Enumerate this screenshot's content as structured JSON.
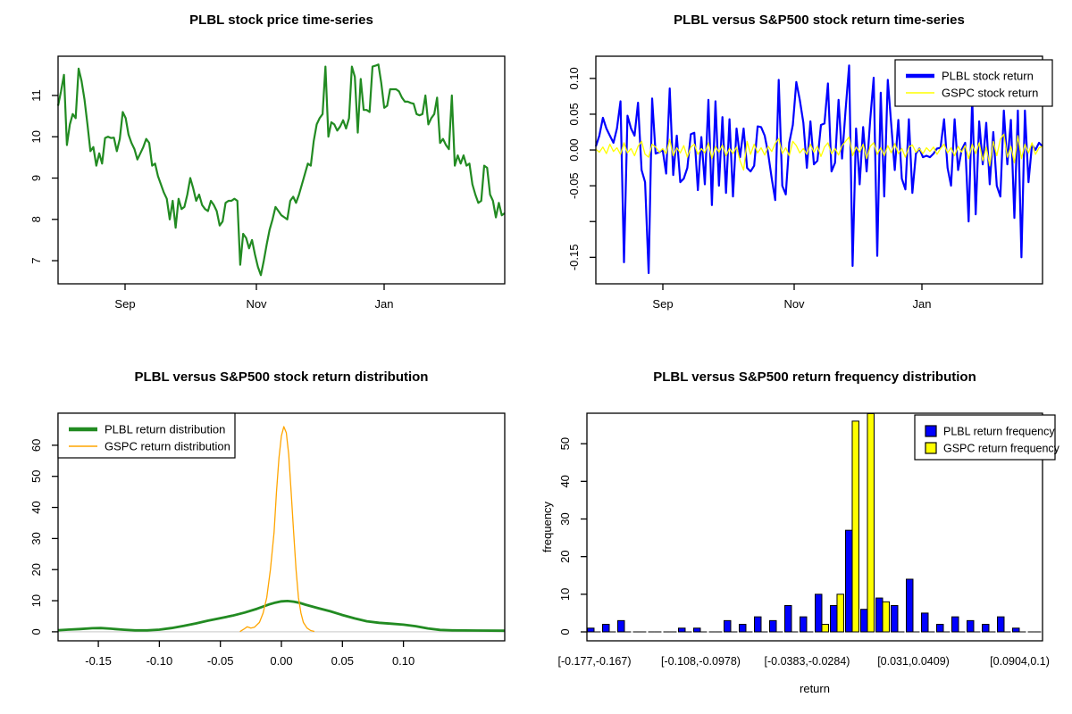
{
  "page": {
    "background": "#ffffff"
  },
  "chart_data": [
    {
      "id": "price",
      "type": "line",
      "title": "PLBL stock price time-series",
      "x_ticks": [
        {
          "f": 0.15,
          "label": "Sep"
        },
        {
          "f": 0.444,
          "label": "Nov"
        },
        {
          "f": 0.73,
          "label": "Jan"
        }
      ],
      "y_ticks": [
        {
          "v": 7,
          "label": "7"
        },
        {
          "v": 8,
          "label": "8"
        },
        {
          "v": 9,
          "label": "9"
        },
        {
          "v": 10,
          "label": "10"
        },
        {
          "v": 11,
          "label": "11"
        }
      ],
      "ylim": [
        6.44,
        11.95
      ],
      "series": [
        {
          "name": "PLBL stock price",
          "color": "#228B22",
          "width": 2.2,
          "values": [
            10.75,
            11.1,
            11.5,
            9.8,
            10.3,
            10.55,
            10.45,
            11.65,
            11.35,
            10.9,
            10.3,
            9.65,
            9.75,
            9.3,
            9.6,
            9.35,
            9.97,
            10.0,
            9.97,
            9.98,
            9.65,
            9.95,
            10.6,
            10.45,
            10.05,
            9.85,
            9.7,
            9.45,
            9.6,
            9.75,
            9.95,
            9.85,
            9.3,
            9.35,
            9.05,
            8.85,
            8.65,
            8.5,
            8.0,
            8.45,
            7.8,
            8.5,
            8.25,
            8.3,
            8.6,
            9.0,
            8.75,
            8.45,
            8.6,
            8.35,
            8.25,
            8.2,
            8.45,
            8.35,
            8.2,
            7.85,
            7.95,
            8.4,
            8.45,
            8.45,
            8.5,
            8.45,
            6.9,
            7.65,
            7.55,
            7.3,
            7.5,
            7.15,
            6.85,
            6.65,
            7.0,
            7.4,
            7.75,
            8.0,
            8.3,
            8.2,
            8.1,
            8.05,
            8.0,
            8.45,
            8.55,
            8.4,
            8.6,
            8.85,
            9.1,
            9.35,
            9.3,
            9.9,
            10.3,
            10.45,
            10.55,
            11.7,
            10.0,
            10.35,
            10.3,
            10.15,
            10.25,
            10.4,
            10.2,
            10.45,
            11.7,
            11.45,
            10.1,
            11.4,
            10.65,
            10.65,
            10.6,
            11.7,
            11.72,
            11.75,
            11.3,
            10.7,
            10.75,
            11.15,
            11.15,
            11.15,
            11.1,
            10.95,
            10.85,
            10.85,
            10.82,
            10.8,
            10.55,
            10.52,
            10.55,
            11.0,
            10.3,
            10.45,
            10.55,
            10.95,
            9.85,
            9.95,
            9.8,
            9.7,
            11.0,
            9.3,
            9.55,
            9.35,
            9.55,
            9.3,
            9.35,
            8.85,
            8.6,
            8.4,
            8.45,
            9.3,
            9.25,
            8.6,
            8.45,
            8.05,
            8.4,
            8.1,
            8.15
          ]
        }
      ]
    },
    {
      "id": "returns",
      "type": "line",
      "title": "PLBL versus S&P500 stock return time-series",
      "x_ticks": [
        {
          "f": 0.15,
          "label": "Sep"
        },
        {
          "f": 0.444,
          "label": "Nov"
        },
        {
          "f": 0.73,
          "label": "Jan"
        }
      ],
      "y_ticks": [
        {
          "v": 0.1,
          "label": "0.10"
        },
        {
          "v": 0.05,
          "label": "0.05"
        },
        {
          "v": 0.0,
          "label": "0.00"
        },
        {
          "v": -0.05,
          "label": "-0.05"
        },
        {
          "v": -0.1,
          "label": ""
        },
        {
          "v": -0.15,
          "label": "-0.15"
        }
      ],
      "ylim": [
        -0.187,
        0.131
      ],
      "legend_position": "top-right",
      "series": [
        {
          "name": "PLBL stock return",
          "color": "#0000FF",
          "width": 2.2,
          "values": [
            0.005,
            0.02,
            0.045,
            0.03,
            0.02,
            0.01,
            0.03,
            0.068,
            -0.157,
            0.048,
            0.03,
            0.02,
            0.066,
            -0.028,
            -0.045,
            -0.172,
            0.072,
            -0.005,
            -0.003,
            0.0,
            -0.033,
            0.086,
            -0.035,
            0.02,
            -0.045,
            -0.04,
            -0.025,
            0.022,
            0.024,
            -0.056,
            0.018,
            -0.048,
            0.07,
            -0.077,
            0.068,
            -0.05,
            0.046,
            -0.06,
            0.043,
            -0.065,
            0.03,
            -0.01,
            0.03,
            -0.025,
            -0.03,
            -0.022,
            0.033,
            0.032,
            0.02,
            -0.005,
            -0.04,
            -0.07,
            0.098,
            -0.05,
            -0.062,
            0.01,
            0.035,
            0.095,
            0.07,
            0.038,
            -0.025,
            0.04,
            -0.02,
            -0.015,
            0.035,
            0.037,
            0.093,
            -0.03,
            -0.018,
            0.07,
            -0.012,
            0.055,
            0.118,
            -0.162,
            0.03,
            -0.048,
            0.032,
            -0.03,
            0.042,
            0.101,
            -0.148,
            0.08,
            -0.065,
            0.098,
            0.035,
            -0.028,
            0.042,
            -0.04,
            -0.055,
            0.043,
            -0.06,
            -0.005,
            0.002,
            -0.01,
            -0.008,
            -0.01,
            -0.005,
            0.002,
            0.003,
            0.043,
            -0.025,
            -0.05,
            0.043,
            -0.028,
            0.0,
            0.01,
            -0.1,
            0.072,
            -0.09,
            0.04,
            -0.02,
            0.038,
            -0.048,
            0.025,
            -0.05,
            -0.065,
            0.055,
            -0.02,
            0.042,
            -0.095,
            0.055,
            -0.15,
            0.055,
            -0.045,
            0.007,
            0.0,
            0.01,
            0.005
          ]
        },
        {
          "name": "GSPC stock return",
          "color": "#FFFF00",
          "width": 1.3,
          "values": [
            0.001,
            -0.003,
            0.004,
            -0.005,
            0.008,
            -0.002,
            0.003,
            -0.006,
            0.01,
            -0.004,
            0.002,
            -0.008,
            0.005,
            0.012,
            -0.006,
            -0.01,
            0.008,
            0.004,
            -0.003,
            0.002,
            -0.005,
            0.015,
            -0.008,
            0.003,
            -0.004,
            0.006,
            -0.01,
            0.004,
            0.008,
            -0.006,
            0.002,
            -0.004,
            0.01,
            -0.012,
            0.005,
            -0.003,
            0.007,
            -0.008,
            0.002,
            -0.005,
            0.004,
            -0.015,
            -0.028,
            0.012,
            -0.006,
            0.008,
            -0.004,
            0.003,
            -0.007,
            0.005,
            -0.002,
            0.009,
            0.016,
            -0.005,
            0.003,
            -0.008,
            0.012,
            0.006,
            -0.004,
            0.002,
            -0.006,
            0.008,
            -0.003,
            0.005,
            -0.009,
            0.004,
            0.01,
            -0.005,
            0.002,
            -0.007,
            0.006,
            0.012,
            0.018,
            -0.008,
            0.004,
            -0.003,
            0.008,
            -0.012,
            0.005,
            0.01,
            -0.006,
            0.003,
            -0.008,
            0.006,
            -0.004,
            0.009,
            -0.005,
            0.002,
            -0.01,
            0.004,
            0.007,
            -0.003,
            0.002,
            -0.005,
            0.003,
            -0.002,
            0.004,
            -0.006,
            0.002,
            0.008,
            -0.004,
            0.003,
            -0.008,
            0.005,
            -0.003,
            0.006,
            -0.012,
            0.008,
            -0.005,
            0.01,
            -0.015,
            0.004,
            -0.022,
            0.012,
            -0.008,
            0.015,
            0.022,
            -0.01,
            0.005,
            -0.018,
            0.02,
            -0.012,
            0.008,
            -0.004,
            0.01,
            -0.006,
            0.003,
            0.005
          ]
        }
      ]
    },
    {
      "id": "density",
      "type": "line-xy",
      "title": "PLBL versus S&P500 stock return distribution",
      "xlim": [
        -0.183,
        0.183
      ],
      "ylim": [
        -2.9,
        70.3
      ],
      "zero_line_color": "#d9d9d9",
      "x_ticks": [
        {
          "v": -0.15,
          "label": "-0.15"
        },
        {
          "v": -0.1,
          "label": "-0.10"
        },
        {
          "v": -0.05,
          "label": "-0.05"
        },
        {
          "v": 0.0,
          "label": "0.00"
        },
        {
          "v": 0.05,
          "label": "0.05"
        },
        {
          "v": 0.1,
          "label": "0.10"
        }
      ],
      "y_ticks": [
        {
          "v": 0,
          "label": "0"
        },
        {
          "v": 10,
          "label": "10"
        },
        {
          "v": 20,
          "label": "20"
        },
        {
          "v": 30,
          "label": "30"
        },
        {
          "v": 40,
          "label": "40"
        },
        {
          "v": 50,
          "label": "50"
        },
        {
          "v": 60,
          "label": "60"
        }
      ],
      "legend_position": "top-left",
      "series": [
        {
          "name": "PLBL return distribution",
          "color": "#228B22",
          "width": 2.8,
          "points": [
            [
              -0.183,
              0.5
            ],
            [
              -0.175,
              0.7
            ],
            [
              -0.165,
              0.9
            ],
            [
              -0.155,
              1.15
            ],
            [
              -0.148,
              1.2
            ],
            [
              -0.14,
              1.0
            ],
            [
              -0.13,
              0.7
            ],
            [
              -0.12,
              0.45
            ],
            [
              -0.11,
              0.45
            ],
            [
              -0.1,
              0.7
            ],
            [
              -0.09,
              1.2
            ],
            [
              -0.08,
              1.9
            ],
            [
              -0.07,
              2.7
            ],
            [
              -0.06,
              3.6
            ],
            [
              -0.05,
              4.4
            ],
            [
              -0.04,
              5.2
            ],
            [
              -0.03,
              6.2
            ],
            [
              -0.02,
              7.4
            ],
            [
              -0.01,
              8.8
            ],
            [
              -0.005,
              9.4
            ],
            [
              0.0,
              9.8
            ],
            [
              0.005,
              9.9
            ],
            [
              0.01,
              9.7
            ],
            [
              0.015,
              9.3
            ],
            [
              0.02,
              8.7
            ],
            [
              0.03,
              7.6
            ],
            [
              0.04,
              6.6
            ],
            [
              0.05,
              5.4
            ],
            [
              0.06,
              4.3
            ],
            [
              0.07,
              3.4
            ],
            [
              0.08,
              2.9
            ],
            [
              0.09,
              2.6
            ],
            [
              0.1,
              2.3
            ],
            [
              0.11,
              1.8
            ],
            [
              0.12,
              1.1
            ],
            [
              0.13,
              0.6
            ],
            [
              0.14,
              0.45
            ],
            [
              0.16,
              0.4
            ],
            [
              0.183,
              0.35
            ]
          ]
        },
        {
          "name": "GSPC return distribution",
          "color": "#FFA500",
          "width": 1.3,
          "points": [
            [
              -0.034,
              0.05
            ],
            [
              -0.031,
              0.8
            ],
            [
              -0.028,
              1.6
            ],
            [
              -0.025,
              1.2
            ],
            [
              -0.022,
              1.5
            ],
            [
              -0.018,
              3.0
            ],
            [
              -0.015,
              6.0
            ],
            [
              -0.012,
              11.0
            ],
            [
              -0.009,
              20.0
            ],
            [
              -0.006,
              32.0
            ],
            [
              -0.004,
              45.0
            ],
            [
              -0.002,
              56.0
            ],
            [
              0.0,
              63.0
            ],
            [
              0.002,
              66.0
            ],
            [
              0.004,
              64.0
            ],
            [
              0.006,
              57.0
            ],
            [
              0.008,
              45.0
            ],
            [
              0.01,
              32.0
            ],
            [
              0.012,
              20.0
            ],
            [
              0.014,
              11.0
            ],
            [
              0.016,
              6.0
            ],
            [
              0.018,
              3.0
            ],
            [
              0.021,
              1.2
            ],
            [
              0.024,
              0.4
            ],
            [
              0.027,
              0.1
            ]
          ]
        }
      ]
    },
    {
      "id": "hist",
      "type": "bar",
      "title": "PLBL versus S&P500 return frequency distribution",
      "xlabel": "return",
      "ylabel": "frequency",
      "bins": 30,
      "ylim": [
        -2.37,
        58.1
      ],
      "y_ticks": [
        {
          "v": 0,
          "label": "0"
        },
        {
          "v": 10,
          "label": "10"
        },
        {
          "v": 20,
          "label": "20"
        },
        {
          "v": 30,
          "label": "30"
        },
        {
          "v": 40,
          "label": "40"
        },
        {
          "v": 50,
          "label": "50"
        }
      ],
      "x_tick_bins": [
        {
          "bin": 0,
          "label": "[-0.177,-0.167)"
        },
        {
          "bin": 7,
          "label": "[-0.108,-0.0978)"
        },
        {
          "bin": 14,
          "label": "[-0.0383,-0.0284)"
        },
        {
          "bin": 21,
          "label": "[0.031,0.0409)"
        },
        {
          "bin": 28,
          "label": "[0.0904,0.1)"
        }
      ],
      "legend_position": "top-right",
      "series": [
        {
          "name": "PLBL return frequency",
          "color": "#0000FF",
          "values": [
            1,
            2,
            3,
            0,
            0,
            0,
            1,
            1,
            0,
            3,
            2,
            4,
            3,
            7,
            4,
            10,
            7,
            27,
            6,
            9,
            7,
            14,
            5,
            2,
            4,
            3,
            2,
            4,
            1,
            0
          ]
        },
        {
          "name": "GSPC return frequency",
          "color": "#FFFF00",
          "values": [
            0,
            0,
            0,
            0,
            0,
            0,
            0,
            0,
            0,
            0,
            0,
            0,
            0,
            0,
            0,
            2,
            10,
            56,
            58,
            8,
            0,
            0,
            0,
            0,
            0,
            0,
            0,
            0,
            0,
            0
          ]
        }
      ]
    }
  ]
}
